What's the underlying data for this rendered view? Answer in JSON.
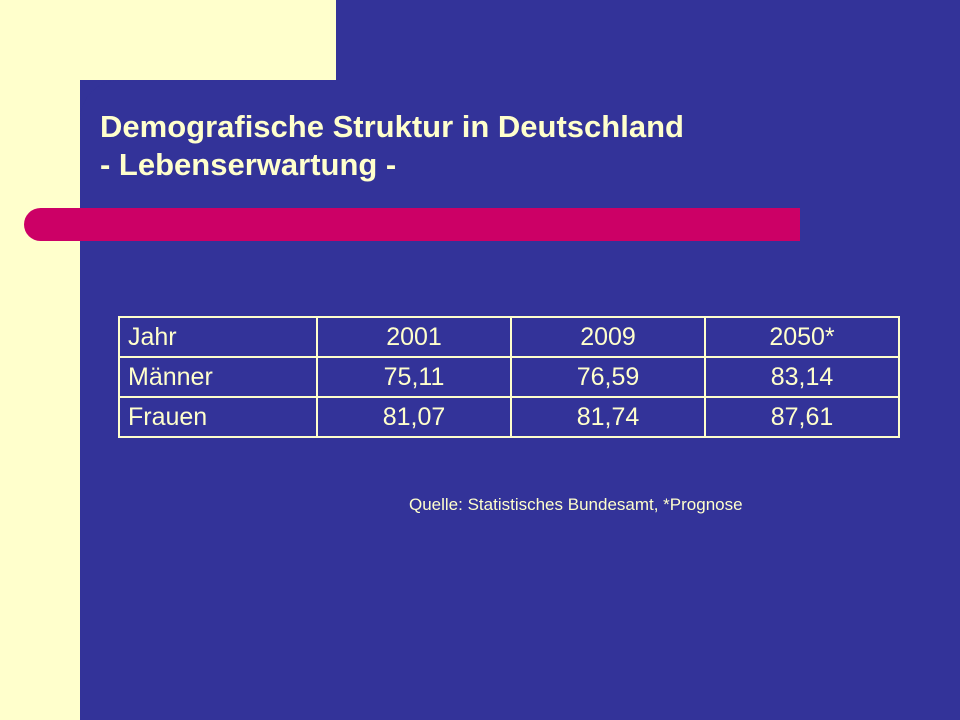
{
  "title": {
    "line1": "Demografische Struktur in Deutschland",
    "line2": "- Lebenserwartung -"
  },
  "table": {
    "rows": [
      [
        "Jahr",
        "2001",
        "2009",
        "2050*"
      ],
      [
        "Männer",
        "75,11",
        "76,59",
        "83,14"
      ],
      [
        "Frauen",
        "81,07",
        "81,74",
        "87,61"
      ]
    ]
  },
  "source": "Quelle: Statistisches Bundesamt, *Prognose",
  "colors": {
    "background": "#333399",
    "cream": "#ffffcc",
    "accent": "#cc0066"
  }
}
